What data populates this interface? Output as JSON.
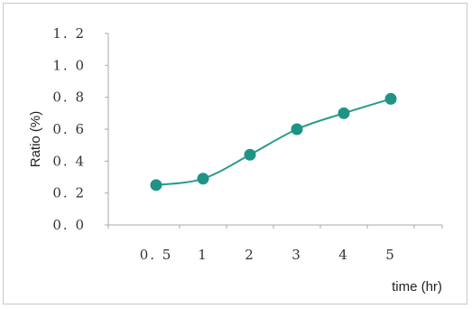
{
  "chart_data": {
    "type": "line",
    "title": "",
    "xlabel": "time (hr)",
    "ylabel": "Ratio (%)",
    "categories": [
      "0.5",
      "1",
      "2",
      "3",
      "4",
      "5"
    ],
    "series": [
      {
        "values": [
          0.25,
          0.29,
          0.44,
          0.6,
          0.7,
          0.79
        ]
      }
    ],
    "ylim": [
      0,
      1.2
    ],
    "yticks": [
      "0.0",
      "0.2",
      "0.4",
      "0.6",
      "0.8",
      "1.0",
      "1.2"
    ],
    "xtick_labels": [
      "0. 5",
      "1",
      "2",
      "3",
      "4",
      "5"
    ],
    "grid": false,
    "legend": "none",
    "smooth": true,
    "colors": {
      "line": "#2a9a8e",
      "marker": "#1f9385",
      "axis": "#aaaaaa"
    }
  }
}
